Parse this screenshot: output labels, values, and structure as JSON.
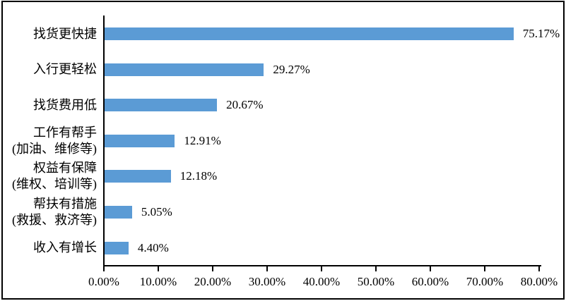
{
  "chart_data": {
    "type": "bar",
    "orientation": "horizontal",
    "title": "",
    "xlabel": "",
    "ylabel": "",
    "categories": [
      "找货更快捷",
      "入行更轻松",
      "找货费用低",
      "工作有帮手(加油、维修等)",
      "权益有保障(维权、培训等)",
      "帮扶有措施(救援、救济等)",
      "收入有增长"
    ],
    "category_lines": [
      [
        "找货更快捷"
      ],
      [
        "入行更轻松"
      ],
      [
        "找货费用低"
      ],
      [
        "工作有帮手",
        "(加油、维修等)"
      ],
      [
        "权益有保障",
        "(维权、培训等)"
      ],
      [
        "帮扶有措施",
        "(救援、救济等)"
      ],
      [
        "收入有增长"
      ]
    ],
    "values": [
      75.17,
      29.27,
      20.67,
      12.91,
      12.18,
      5.05,
      4.4
    ],
    "value_labels": [
      "75.17%",
      "29.27%",
      "20.67%",
      "12.91%",
      "12.18%",
      "5.05%",
      "4.40%"
    ],
    "x_axis": {
      "min": 0,
      "max": 80,
      "tick_step": 10,
      "tick_labels": [
        "0.00%",
        "10.00%",
        "20.00%",
        "30.00%",
        "40.00%",
        "50.00%",
        "60.00%",
        "70.00%",
        "80.00%"
      ]
    },
    "bar_color": "#5B9BD5",
    "axis_color": "#000000",
    "background_color": "#FFFFFF",
    "grid": false,
    "legend": false
  }
}
